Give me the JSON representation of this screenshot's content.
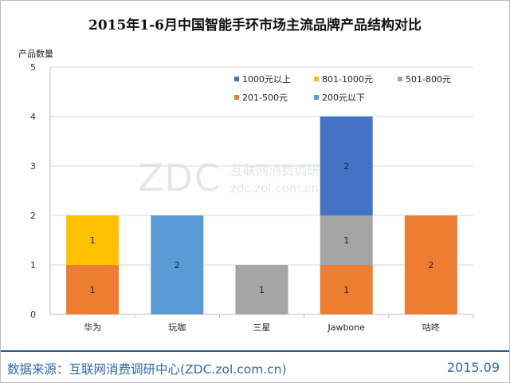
{
  "footer": {
    "source": "数据来源：互联网消费调研中心(ZDC.zol.com.cn)",
    "date": "2015.09"
  },
  "watermark": {
    "logo": "ZDC",
    "cn": "互联网消费调研中心",
    "url": "zdc.zol.com.cn"
  },
  "colors": {
    "1000元以上": "#4472c4",
    "801-1000元": "#ffc000",
    "501-800元": "#a5a5a5",
    "201-500元": "#ed7d31",
    "200元以下": "#5b9bd5",
    "footer_text": "#2e6aa6"
  },
  "chart_data": {
    "type": "bar",
    "stacked": true,
    "title": "2015年1-6月中国智能手环市场主流品牌产品结构对比",
    "ylabel": "产品数量",
    "xlabel": "",
    "ylim": [
      0,
      5
    ],
    "yticks": [
      0,
      1,
      2,
      3,
      4,
      5
    ],
    "grid": true,
    "legend_position": "top-right",
    "categories": [
      "华为",
      "玩咖",
      "三星",
      "Jawbone",
      "咕咚"
    ],
    "series": [
      {
        "name": "1000元以上",
        "values": [
          0,
          0,
          0,
          2,
          0
        ]
      },
      {
        "name": "801-1000元",
        "values": [
          1,
          0,
          0,
          0,
          0
        ]
      },
      {
        "name": "501-800元",
        "values": [
          0,
          0,
          1,
          1,
          0
        ]
      },
      {
        "name": "201-500元",
        "values": [
          1,
          0,
          0,
          1,
          2
        ]
      },
      {
        "name": "200元以下",
        "values": [
          0,
          2,
          0,
          0,
          0
        ]
      }
    ],
    "stack_order": [
      "200元以下",
      "201-500元",
      "501-800元",
      "801-1000元",
      "1000元以上"
    ],
    "data_labels": true
  }
}
